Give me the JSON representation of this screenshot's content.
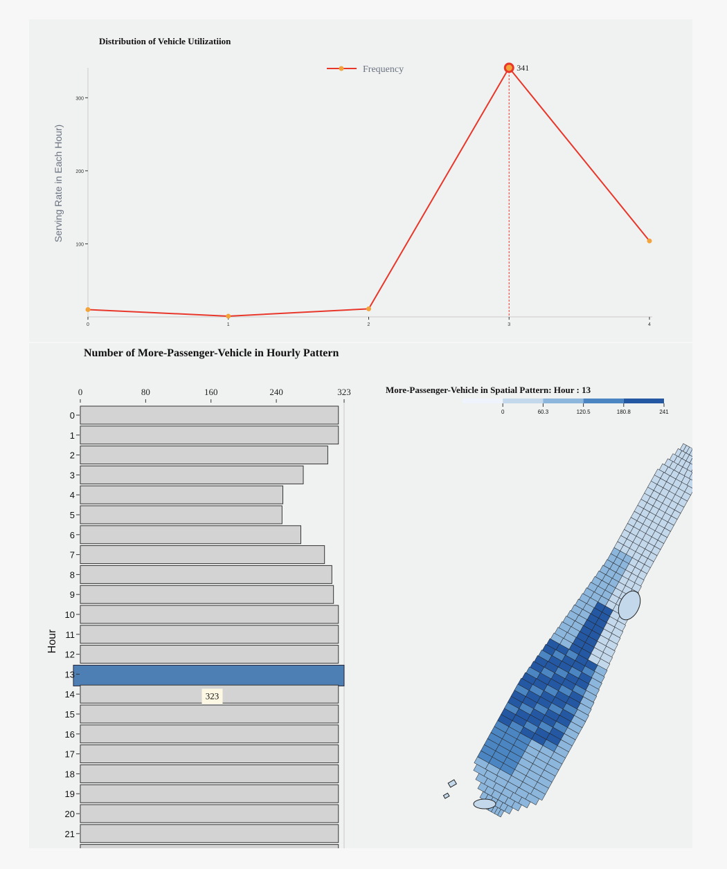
{
  "top_chart": {
    "title": "Distribution of Vehicle Utilizatiion",
    "ylabel": "Serving Rate in Each Hour)",
    "legend_label": "Frequency",
    "highlight_label": "341",
    "line_color": "#e8372a",
    "marker_color": "#f2a33a"
  },
  "bottom_chart": {
    "title": "Number of More-Passenger-Vehicle in Hourly Pattern",
    "ylabel": "Hour",
    "tooltip": "323",
    "bar_color": "#d3d3d3",
    "highlight_color": "#4e7fb4"
  },
  "map_panel": {
    "title": "More-Passenger-Vehicle in Spatial Pattern: Hour : 13",
    "legend_ticks": [
      "0",
      "60.3",
      "120.5",
      "180.8",
      "241"
    ],
    "legend_colors": [
      "#eff3fb",
      "#c4d8ec",
      "#8db6dc",
      "#4b85c2",
      "#2558a2"
    ],
    "map_icon": "manhattan-choropleth"
  },
  "chart_data": [
    {
      "type": "line",
      "title": "Distribution of Vehicle Utilizatiion",
      "xlabel": "",
      "ylabel": "Serving Rate in Each Hour)",
      "x": [
        0,
        1,
        2,
        3,
        4
      ],
      "x_ticks": [
        "0",
        "1",
        "2",
        "3",
        "4"
      ],
      "y_ticks": [
        "100",
        "200",
        "300"
      ],
      "series": [
        {
          "name": "Frequency",
          "values": [
            10,
            1,
            11,
            341,
            104
          ]
        }
      ],
      "highlight": {
        "index": 3,
        "label": "341"
      },
      "xlim": [
        0,
        4
      ],
      "ylim": [
        0,
        341
      ],
      "grid": false,
      "legend": "top-center"
    },
    {
      "type": "bar",
      "orientation": "horizontal",
      "title": "Number of More-Passenger-Vehicle in Hourly Pattern",
      "xlabel": "",
      "ylabel": "Hour",
      "categories": [
        "0",
        "1",
        "2",
        "3",
        "4",
        "5",
        "6",
        "7",
        "8",
        "9",
        "10",
        "11",
        "12",
        "13",
        "14",
        "15",
        "16",
        "17",
        "18",
        "19",
        "20",
        "21"
      ],
      "values": [
        316,
        316,
        303,
        273,
        248,
        247,
        270,
        299,
        308,
        310,
        316,
        316,
        316,
        323,
        316,
        316,
        316,
        316,
        316,
        316,
        316,
        316
      ],
      "x_ticks": [
        "0",
        "80",
        "160",
        "240",
        "323"
      ],
      "x_tick_values": [
        0,
        80,
        160,
        240,
        323
      ],
      "xlim": [
        0,
        323
      ],
      "highlight": {
        "category": "13",
        "label": "323"
      },
      "grid": false
    }
  ]
}
